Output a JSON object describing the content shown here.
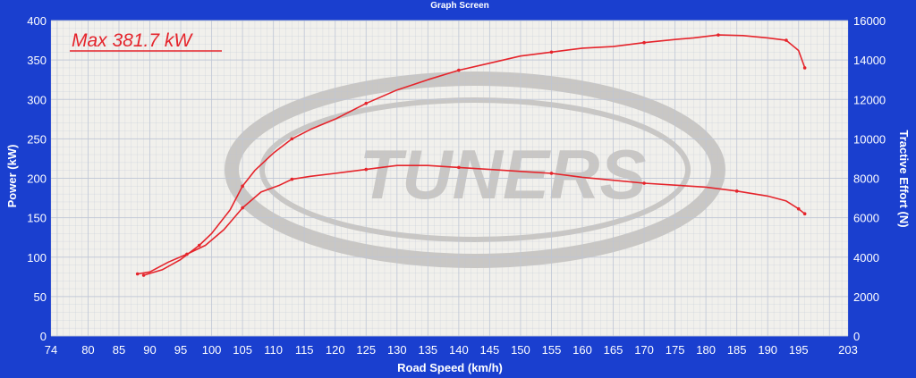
{
  "window": {
    "title": "Graph Screen"
  },
  "colors": {
    "frame": "#1a3fcf",
    "plot_bg": "#f1f0ec",
    "grid": "#bfc6d6",
    "curve": "#e5242b",
    "watermark": "#c9c7c4"
  },
  "watermark": {
    "text": "TUNERS"
  },
  "chart_data": {
    "type": "line",
    "title": "",
    "annotation": "Max 381.7 kW",
    "xlabel": "Road Speed (km/h)",
    "ylabel": "Power (kW)",
    "y2label": "Tractive Effort (N)",
    "xlim": [
      74,
      203
    ],
    "ylim": [
      0,
      400
    ],
    "y2lim": [
      0,
      16000
    ],
    "grid": true,
    "legend": "none",
    "xticks": [
      "74",
      "80",
      "85",
      "90",
      "95",
      "100",
      "105",
      "110",
      "115",
      "120",
      "125",
      "130",
      "135",
      "140",
      "145",
      "150",
      "155",
      "160",
      "165",
      "170",
      "175",
      "180",
      "185",
      "190",
      "195",
      "203"
    ],
    "yticks": [
      "0",
      "50",
      "100",
      "150",
      "200",
      "250",
      "300",
      "350",
      "400"
    ],
    "y2ticks": [
      "0",
      "2000",
      "4000",
      "6000",
      "8000",
      "10000",
      "12000",
      "14000",
      "16000"
    ],
    "series": [
      {
        "axis": "left",
        "x": [
          89,
          92,
          95,
          98,
          100,
          103,
          105,
          107,
          110,
          113,
          116,
          120,
          125,
          130,
          135,
          140,
          145,
          150,
          155,
          160,
          165,
          170,
          175,
          178,
          182,
          186,
          190,
          193,
          195,
          196
        ],
        "y": [
          77,
          84,
          97,
          115,
          130,
          160,
          190,
          210,
          232,
          250,
          262,
          275,
          295,
          312,
          325,
          337,
          346,
          355,
          360,
          365,
          367,
          372,
          376,
          378,
          381.7,
          381,
          378,
          375,
          362,
          340
        ]
      },
      {
        "axis": "right",
        "x": [
          88,
          90,
          93,
          96,
          99,
          102,
          105,
          108,
          111,
          113,
          116,
          120,
          125,
          130,
          135,
          140,
          145,
          150,
          155,
          160,
          165,
          170,
          175,
          180,
          185,
          190,
          193,
          195,
          196
        ],
        "y": [
          3150,
          3250,
          3750,
          4150,
          4600,
          5400,
          6500,
          7300,
          7650,
          7950,
          8100,
          8250,
          8450,
          8650,
          8650,
          8550,
          8450,
          8350,
          8250,
          8050,
          7900,
          7750,
          7650,
          7550,
          7350,
          7100,
          6850,
          6450,
          6200
        ]
      }
    ]
  }
}
